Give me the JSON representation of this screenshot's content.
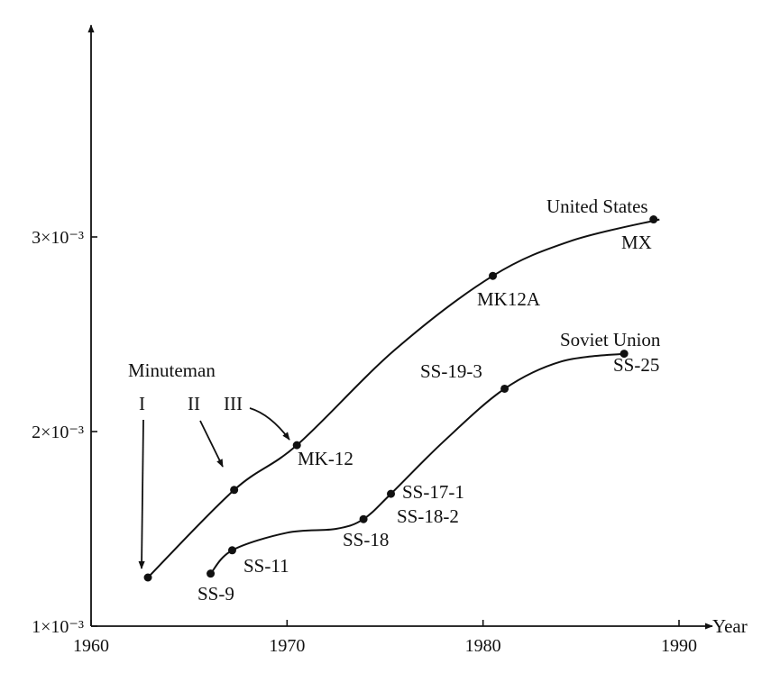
{
  "chart_data": {
    "type": "line",
    "xlabel": "Year",
    "ylabel": "",
    "xlim": [
      1960,
      1990
    ],
    "ylim": [
      0.001,
      0.004
    ],
    "x_ticks": [
      {
        "value": 1960,
        "label": "1960"
      },
      {
        "value": 1970,
        "label": "1970"
      },
      {
        "value": 1980,
        "label": "1980"
      },
      {
        "value": 1990,
        "label": "1990"
      }
    ],
    "y_ticks": [
      {
        "value": 0.001,
        "label": "1×10⁻³"
      },
      {
        "value": 0.002,
        "label": "2×10⁻³"
      },
      {
        "value": 0.003,
        "label": "3×10⁻³"
      }
    ],
    "grid": false,
    "series": [
      {
        "name": "United States",
        "curve": [
          {
            "x": 1962.9,
            "y": 0.00125
          },
          {
            "x": 1967.3,
            "y": 0.0017
          },
          {
            "x": 1970.5,
            "y": 0.00193
          },
          {
            "x": 1975.5,
            "y": 0.00242
          },
          {
            "x": 1980.5,
            "y": 0.0028
          },
          {
            "x": 1984.5,
            "y": 0.00298
          },
          {
            "x": 1989.0,
            "y": 0.00309
          }
        ],
        "points": [
          {
            "x": 1962.9,
            "y": 0.00125,
            "label": ""
          },
          {
            "x": 1967.3,
            "y": 0.0017,
            "label": ""
          },
          {
            "x": 1970.5,
            "y": 0.00193,
            "label": "MK-12"
          },
          {
            "x": 1980.5,
            "y": 0.0028,
            "label": "MK12A"
          },
          {
            "x": 1988.7,
            "y": 0.00309,
            "label": "MX"
          }
        ]
      },
      {
        "name": "Soviet Union",
        "curve": [
          {
            "x": 1966.1,
            "y": 0.00127
          },
          {
            "x": 1967.2,
            "y": 0.00139
          },
          {
            "x": 1970.0,
            "y": 0.00148
          },
          {
            "x": 1972.5,
            "y": 0.0015
          },
          {
            "x": 1973.9,
            "y": 0.00155
          },
          {
            "x": 1975.3,
            "y": 0.00168
          },
          {
            "x": 1978.0,
            "y": 0.00195
          },
          {
            "x": 1981.1,
            "y": 0.00222
          },
          {
            "x": 1984.0,
            "y": 0.00236
          },
          {
            "x": 1987.2,
            "y": 0.0024
          }
        ],
        "points": [
          {
            "x": 1966.1,
            "y": 0.00127,
            "label": "SS-9"
          },
          {
            "x": 1967.2,
            "y": 0.00139,
            "label": "SS-11"
          },
          {
            "x": 1973.9,
            "y": 0.00155,
            "label": "SS-18"
          },
          {
            "x": 1975.3,
            "y": 0.00168,
            "label": "SS-17-1"
          },
          {
            "x": 1981.1,
            "y": 0.00222,
            "label": "SS-19-3"
          },
          {
            "x": 1987.2,
            "y": 0.0024,
            "label": "SS-25"
          }
        ],
        "extra_point_labels": [
          "SS-18-2"
        ]
      }
    ],
    "annotations": {
      "minuteman_title": "Minuteman",
      "minuteman_i": "I",
      "minuteman_ii": "II",
      "minuteman_iii": "III"
    }
  }
}
